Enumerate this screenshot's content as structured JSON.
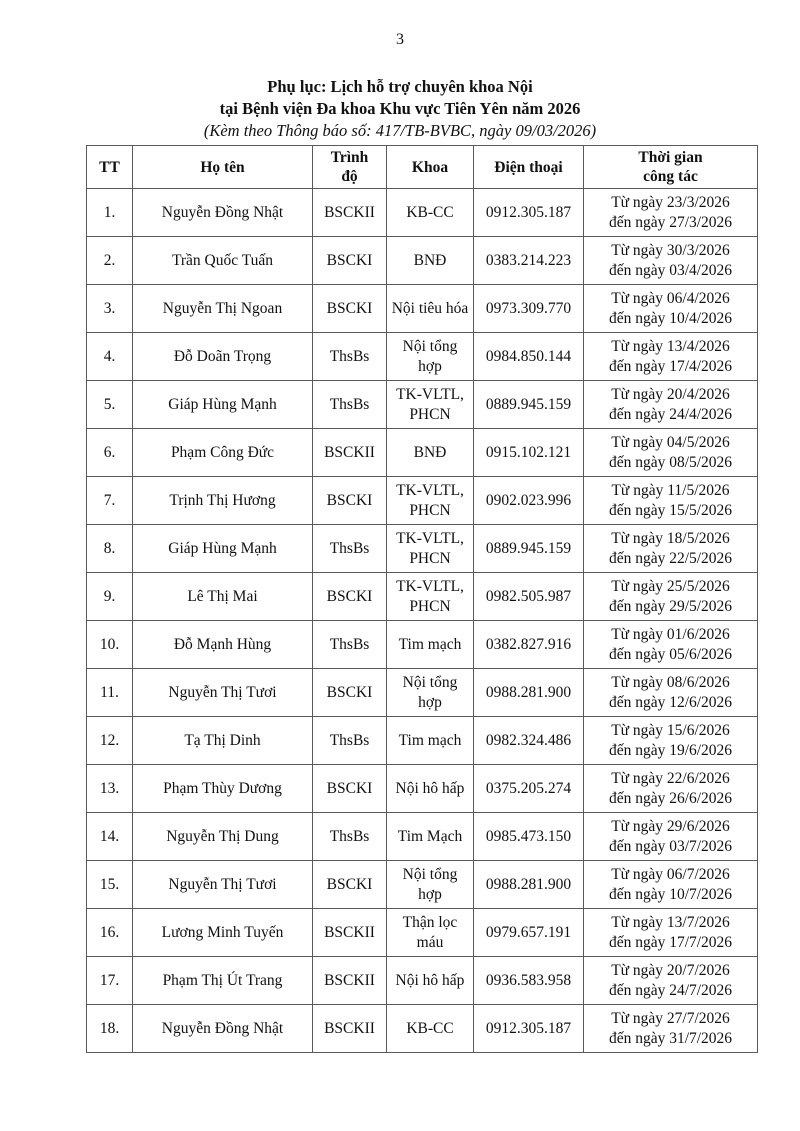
{
  "page_number": "3",
  "title": {
    "line1": "Phụ lục: Lịch hỗ trợ chuyên khoa Nội",
    "line2": "tại Bệnh viện Đa khoa Khu vực Tiên Yên năm 2026",
    "note": "(Kèm theo Thông báo số: 417/TB-BVBC, ngày 09/03/2026)"
  },
  "table": {
    "headers": {
      "tt": "TT",
      "name": "Họ tên",
      "degree": "Trình\nđộ",
      "dept": "Khoa",
      "phone": "Điện thoại",
      "time": "Thời gian\ncông tác"
    },
    "rows": [
      {
        "tt": "1.",
        "name": "Nguyễn Đồng Nhật",
        "degree": "BSCKII",
        "dept": "KB-CC",
        "phone": "0912.305.187",
        "time": "Từ ngày 23/3/2026\nđến ngày 27/3/2026"
      },
      {
        "tt": "2.",
        "name": "Trần Quốc Tuấn",
        "degree": "BSCKI",
        "dept": "BNĐ",
        "phone": "0383.214.223",
        "time": "Từ ngày 30/3/2026\nđến ngày 03/4/2026"
      },
      {
        "tt": "3.",
        "name": "Nguyễn Thị Ngoan",
        "degree": "BSCKI",
        "dept": "Nội tiêu hóa",
        "phone": "0973.309.770",
        "time": "Từ ngày 06/4/2026\nđến ngày 10/4/2026"
      },
      {
        "tt": "4.",
        "name": "Đỗ Doãn Trọng",
        "degree": "ThsBs",
        "dept": "Nội tổng hợp",
        "phone": "0984.850.144",
        "time": "Từ ngày 13/4/2026\nđến ngày 17/4/2026"
      },
      {
        "tt": "5.",
        "name": "Giáp Hùng Mạnh",
        "degree": "ThsBs",
        "dept": "TK-VLTL, PHCN",
        "phone": "0889.945.159",
        "time": "Từ ngày 20/4/2026\nđến ngày 24/4/2026"
      },
      {
        "tt": "6.",
        "name": "Phạm Công Đức",
        "degree": "BSCKII",
        "dept": "BNĐ",
        "phone": "0915.102.121",
        "time": "Từ ngày 04/5/2026\nđến ngày 08/5/2026"
      },
      {
        "tt": "7.",
        "name": "Trịnh Thị Hương",
        "degree": "BSCKI",
        "dept": "TK-VLTL, PHCN",
        "phone": "0902.023.996",
        "time": "Từ ngày 11/5/2026\nđến ngày 15/5/2026"
      },
      {
        "tt": "8.",
        "name": "Giáp Hùng Mạnh",
        "degree": "ThsBs",
        "dept": "TK-VLTL, PHCN",
        "phone": "0889.945.159",
        "time": "Từ ngày 18/5/2026\nđến ngày 22/5/2026"
      },
      {
        "tt": "9.",
        "name": "Lê Thị Mai",
        "degree": "BSCKI",
        "dept": "TK-VLTL, PHCN",
        "phone": "0982.505.987",
        "time": "Từ ngày 25/5/2026\nđến ngày 29/5/2026"
      },
      {
        "tt": "10.",
        "name": "Đỗ Mạnh Hùng",
        "degree": "ThsBs",
        "dept": "Tim mạch",
        "phone": "0382.827.916",
        "time": "Từ ngày 01/6/2026\nđến ngày 05/6/2026"
      },
      {
        "tt": "11.",
        "name": "Nguyễn Thị Tươi",
        "degree": "BSCKI",
        "dept": "Nội tổng hợp",
        "phone": "0988.281.900",
        "time": "Từ ngày 08/6/2026\nđến ngày 12/6/2026"
      },
      {
        "tt": "12.",
        "name": "Tạ Thị Dinh",
        "degree": "ThsBs",
        "dept": "Tim mạch",
        "phone": "0982.324.486",
        "time": "Từ ngày 15/6/2026\nđến ngày 19/6/2026"
      },
      {
        "tt": "13.",
        "name": "Phạm Thùy Dương",
        "degree": "BSCKI",
        "dept": "Nội hô hấp",
        "phone": "0375.205.274",
        "time": "Từ ngày 22/6/2026\nđến ngày 26/6/2026"
      },
      {
        "tt": "14.",
        "name": "Nguyễn Thị Dung",
        "degree": "ThsBs",
        "dept": "Tim Mạch",
        "phone": "0985.473.150",
        "time": "Từ ngày 29/6/2026\nđến ngày 03/7/2026"
      },
      {
        "tt": "15.",
        "name": "Nguyễn Thị Tươi",
        "degree": "BSCKI",
        "dept": "Nội tổng hợp",
        "phone": "0988.281.900",
        "time": "Từ ngày 06/7/2026\nđến ngày 10/7/2026"
      },
      {
        "tt": "16.",
        "name": "Lương Minh Tuyến",
        "degree": "BSCKII",
        "dept": "Thận lọc máu",
        "phone": "0979.657.191",
        "time": "Từ ngày 13/7/2026\nđến ngày 17/7/2026"
      },
      {
        "tt": "17.",
        "name": "Phạm Thị Út Trang",
        "degree": "BSCKII",
        "dept": "Nội hô hấp",
        "phone": "0936.583.958",
        "time": "Từ ngày 20/7/2026\nđến ngày 24/7/2026"
      },
      {
        "tt": "18.",
        "name": "Nguyễn Đồng Nhật",
        "degree": "BSCKII",
        "dept": "KB-CC",
        "phone": "0912.305.187",
        "time": "Từ ngày 27/7/2026\nđến ngày 31/7/2026"
      }
    ]
  }
}
